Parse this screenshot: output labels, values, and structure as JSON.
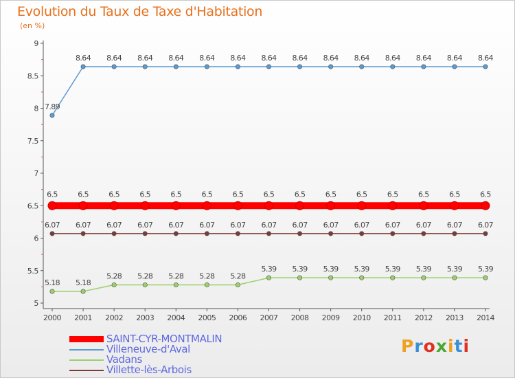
{
  "title": "Evolution du Taux de Taxe d'Habitation",
  "subtitle": "(en %)",
  "logo": {
    "letters": [
      {
        "ch": "P",
        "color": "#f0a020"
      },
      {
        "ch": "r",
        "color": "#3a8fd8"
      },
      {
        "ch": "o",
        "color": "#e03020"
      },
      {
        "ch": "x",
        "color": "#4aa830"
      },
      {
        "ch": "i",
        "color": "#f0a020"
      },
      {
        "ch": "t",
        "color": "#3a8fd8"
      },
      {
        "ch": "i",
        "color": "#e03020"
      }
    ]
  },
  "chart_data": {
    "type": "line",
    "x": [
      "2000",
      "2001",
      "2002",
      "2003",
      "2004",
      "2005",
      "2006",
      "2007",
      "2008",
      "2009",
      "2010",
      "2011",
      "2012",
      "2013",
      "2014"
    ],
    "ylim": [
      5,
      9
    ],
    "yticks": [
      "5",
      "5.5",
      "6",
      "6.5",
      "7",
      "7.5",
      "8",
      "8.5",
      "9"
    ],
    "grid": false,
    "legend_position": "bottom-left",
    "series": [
      {
        "name": "SAINT-CYR-MONTMALIN",
        "color": "#ff0000",
        "width": 10,
        "label_pos": "above",
        "values": [
          6.5,
          6.5,
          6.5,
          6.5,
          6.5,
          6.5,
          6.5,
          6.5,
          6.5,
          6.5,
          6.5,
          6.5,
          6.5,
          6.5,
          6.5
        ],
        "labels": [
          "6.5",
          "6.5",
          "6.5",
          "6.5",
          "6.5",
          "6.5",
          "6.5",
          "6.5",
          "6.5",
          "6.5",
          "6.5",
          "6.5",
          "6.5",
          "6.5",
          "6.5"
        ]
      },
      {
        "name": "Villeneuve-d'Aval",
        "color": "#5a9bd2",
        "width": 1.5,
        "label_pos": "above",
        "values": [
          7.89,
          8.64,
          8.64,
          8.64,
          8.64,
          8.64,
          8.64,
          8.64,
          8.64,
          8.64,
          8.64,
          8.64,
          8.64,
          8.64,
          8.64
        ],
        "labels": [
          "7.89",
          "8.64",
          "8.64",
          "8.64",
          "8.64",
          "8.64",
          "8.64",
          "8.64",
          "8.64",
          "8.64",
          "8.64",
          "8.64",
          "8.64",
          "8.64",
          "8.64"
        ]
      },
      {
        "name": "Vadans",
        "color": "#9bd06a",
        "width": 1.5,
        "label_pos": "above",
        "values": [
          5.18,
          5.18,
          5.28,
          5.28,
          5.28,
          5.28,
          5.28,
          5.39,
          5.39,
          5.39,
          5.39,
          5.39,
          5.39,
          5.39,
          5.39
        ],
        "labels": [
          "5.18",
          "5.18",
          "5.28",
          "5.28",
          "5.28",
          "5.28",
          "5.28",
          "5.39",
          "5.39",
          "5.39",
          "5.39",
          "5.39",
          "5.39",
          "5.39",
          "5.39"
        ]
      },
      {
        "name": "Villette-lès-Arbois",
        "color": "#7d3a3a",
        "width": 1.5,
        "label_pos": "above",
        "values": [
          6.07,
          6.07,
          6.07,
          6.07,
          6.07,
          6.07,
          6.07,
          6.07,
          6.07,
          6.07,
          6.07,
          6.07,
          6.07,
          6.07,
          6.07
        ],
        "labels": [
          "6.07",
          "6.07",
          "6.07",
          "6.07",
          "6.07",
          "6.07",
          "6.07",
          "6.07",
          "6.07",
          "6.07",
          "6.07",
          "6.07",
          "6.07",
          "6.07",
          "6.07"
        ]
      }
    ]
  }
}
